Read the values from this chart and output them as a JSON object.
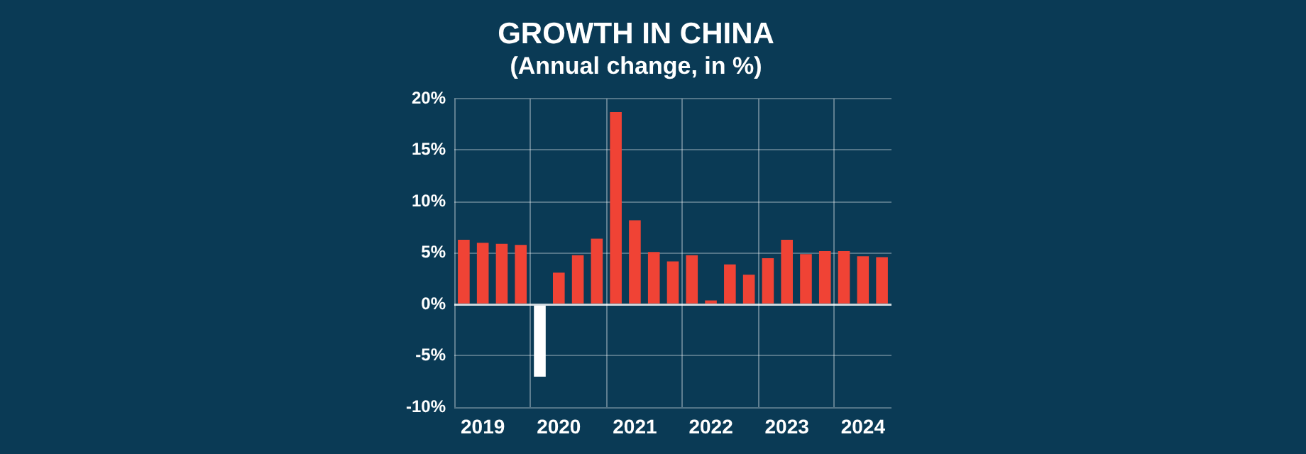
{
  "chart_data": {
    "type": "bar",
    "title": "GROWTH IN CHINA",
    "subtitle": "(Annual change, in %)",
    "categories": [
      null,
      "2019",
      null,
      null,
      null,
      "2020",
      null,
      null,
      null,
      "2021",
      null,
      null,
      null,
      "2022",
      null,
      null,
      null,
      "2023",
      null,
      null,
      null,
      "2024",
      null
    ],
    "values": [
      6.3,
      6.0,
      5.9,
      5.8,
      -7.0,
      3.1,
      4.8,
      6.4,
      18.7,
      8.2,
      5.1,
      4.2,
      4.8,
      0.4,
      3.9,
      2.9,
      4.5,
      6.3,
      4.9,
      5.2,
      5.2,
      4.7,
      4.6
    ],
    "colors": [
      "#f04335",
      "#f04335",
      "#f04335",
      "#f04335",
      "#ffffff",
      "#f04335",
      "#f04335",
      "#f04335",
      "#f04335",
      "#f04335",
      "#f04335",
      "#f04335",
      "#f04335",
      "#f04335",
      "#f04335",
      "#f04335",
      "#f04335",
      "#f04335",
      "#f04335",
      "#f04335",
      "#f04335",
      "#f04335",
      "#f04335"
    ],
    "ylim": [
      -10,
      20
    ],
    "yticks": [
      {
        "value": -10,
        "label": "-10%"
      },
      {
        "value": -5,
        "label": "-5%"
      },
      {
        "value": 0,
        "label": "0%"
      },
      {
        "value": 5,
        "label": "5%"
      },
      {
        "value": 10,
        "label": "10%"
      },
      {
        "value": 15,
        "label": "15%"
      },
      {
        "value": 20,
        "label": "20%"
      }
    ],
    "grid": true,
    "legend": false
  }
}
